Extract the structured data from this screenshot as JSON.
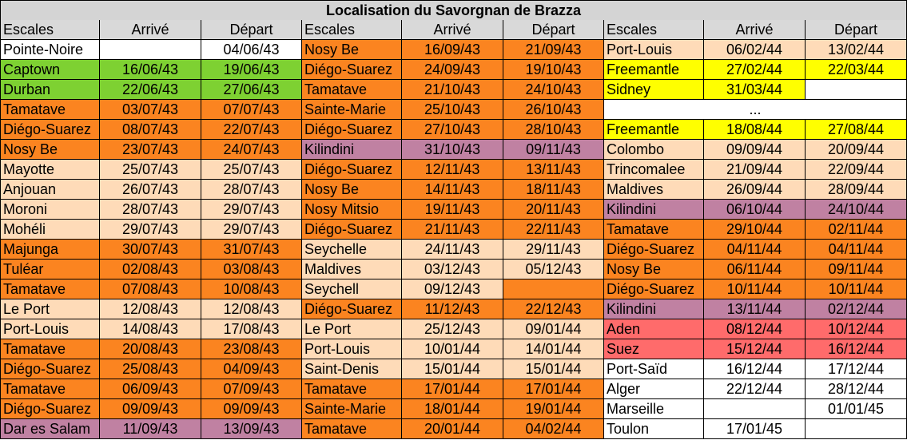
{
  "title": "Localisation du Savorgnan de Brazza",
  "groups": [
    {
      "headers": [
        "Escales",
        "Arrivé",
        "Départ"
      ],
      "rows": [
        {
          "cells": [
            "Pointe-Noire",
            null,
            "04/06/43"
          ],
          "color": "#ffffff"
        },
        {
          "cells": [
            "Captown",
            "16/06/43",
            "19/06/43"
          ],
          "color": "#7ed132"
        },
        {
          "cells": [
            "Durban",
            "22/06/43",
            "27/06/43"
          ],
          "color": "#7ed132"
        },
        {
          "cells": [
            "Tamatave",
            "03/07/43",
            "07/07/43"
          ],
          "color": "#fb8420"
        },
        {
          "cells": [
            "Diégo-Suarez",
            "08/07/43",
            "22/07/43"
          ],
          "color": "#fb8420"
        },
        {
          "cells": [
            "Nosy Be",
            "23/07/43",
            "24/07/43"
          ],
          "color": "#fb8420"
        },
        {
          "cells": [
            "Mayotte",
            "25/07/43",
            "25/07/43"
          ],
          "color": "#fedbb8"
        },
        {
          "cells": [
            "Anjouan",
            "26/07/43",
            "28/07/43"
          ],
          "color": "#fedbb8"
        },
        {
          "cells": [
            "Moroni",
            "28/07/43",
            "29/07/43"
          ],
          "color": "#fedbb8"
        },
        {
          "cells": [
            "Mohéli",
            "29/07/43",
            "29/07/43"
          ],
          "color": "#fedbb8"
        },
        {
          "cells": [
            "Majunga",
            "30/07/43",
            "31/07/43"
          ],
          "color": "#fb8420"
        },
        {
          "cells": [
            "Tuléar",
            "02/08/43",
            "03/08/43"
          ],
          "color": "#fb8420"
        },
        {
          "cells": [
            "Tamatave",
            "07/08/43",
            "10/08/43"
          ],
          "color": "#fb8420"
        },
        {
          "cells": [
            "Le Port",
            "12/08/43",
            "12/08/43"
          ],
          "color": "#fedbb8"
        },
        {
          "cells": [
            "Port-Louis",
            "14/08/43",
            "17/08/43"
          ],
          "color": "#fedbb8"
        },
        {
          "cells": [
            "Tamatave",
            "20/08/43",
            "23/08/43"
          ],
          "color": "#fb8420"
        },
        {
          "cells": [
            "Diégo-Suarez",
            "25/08/43",
            "04/09/43"
          ],
          "color": "#fb8420"
        },
        {
          "cells": [
            "Tamatave",
            "06/09/43",
            "07/09/43"
          ],
          "color": "#fb8420"
        },
        {
          "cells": [
            "Diégo-Suarez",
            "09/09/43",
            "09/09/43"
          ],
          "color": "#fb8420"
        },
        {
          "cells": [
            "Dar es Salam",
            "11/09/43",
            "13/09/43"
          ],
          "color": "#c081a2"
        }
      ]
    },
    {
      "headers": [
        "Escales",
        "Arrivé",
        "Départ"
      ],
      "rows": [
        {
          "cells": [
            "Nosy Be",
            "16/09/43",
            "21/09/43"
          ],
          "color": "#fb8420"
        },
        {
          "cells": [
            "Diégo-Suarez",
            "24/09/43",
            "19/10/43"
          ],
          "color": "#fb8420"
        },
        {
          "cells": [
            "Tamatave",
            "21/10/43",
            "24/10/43"
          ],
          "color": "#fb8420"
        },
        {
          "cells": [
            "Sainte-Marie",
            "25/10/43",
            "26/10/43"
          ],
          "color": "#fb8420"
        },
        {
          "cells": [
            "Diégo-Suarez",
            "27/10/43",
            "28/10/43"
          ],
          "color": "#fb8420"
        },
        {
          "cells": [
            "Kilindini",
            "31/10/43",
            "09/11/43"
          ],
          "color": "#c081a2"
        },
        {
          "cells": [
            "Diégo-Suarez",
            "12/11/43",
            "13/11/43"
          ],
          "color": "#fb8420"
        },
        {
          "cells": [
            "Nosy Be",
            "14/11/43",
            "18/11/43"
          ],
          "color": "#fb8420"
        },
        {
          "cells": [
            "Nosy Mitsio",
            "19/11/43",
            "20/11/43"
          ],
          "color": "#fb8420"
        },
        {
          "cells": [
            "Diégo-Suarez",
            "21/11/43",
            "22/11/43"
          ],
          "color": "#fb8420"
        },
        {
          "cells": [
            "Seychelle",
            "24/11/43",
            "29/11/43"
          ],
          "color": "#fedbb8"
        },
        {
          "cells": [
            "Maldives",
            "03/12/43",
            "05/12/43"
          ],
          "color": "#fedbb8"
        },
        {
          "cells": [
            "Seychell",
            "09/12/43",
            null
          ],
          "colors": [
            "#fedbb8",
            "#fedbb8",
            "#fb8420"
          ]
        },
        {
          "cells": [
            "Diégo-Suarez",
            "11/12/43",
            "22/12/43"
          ],
          "color": "#fb8420"
        },
        {
          "cells": [
            "Le Port",
            "25/12/43",
            "09/01/44"
          ],
          "color": "#fedbb8"
        },
        {
          "cells": [
            "Port-Louis",
            "10/01/44",
            "14/01/44"
          ],
          "color": "#fedbb8"
        },
        {
          "cells": [
            "Saint-Denis",
            "15/01/44",
            "15/01/44"
          ],
          "color": "#fedbb8"
        },
        {
          "cells": [
            "Tamatave",
            "17/01/44",
            "17/01/44"
          ],
          "color": "#fb8420"
        },
        {
          "cells": [
            "Sainte-Marie",
            "18/01/44",
            "19/01/44"
          ],
          "color": "#fb8420"
        },
        {
          "cells": [
            "Tamatave",
            "20/01/44",
            "04/02/44"
          ],
          "color": "#fb8420"
        }
      ]
    },
    {
      "headers": [
        "Escales",
        "Arrivé",
        "Départ"
      ],
      "rows": [
        {
          "cells": [
            "Port-Louis",
            "06/02/44",
            "13/02/44"
          ],
          "color": "#fedbb8"
        },
        {
          "cells": [
            "Freemantle",
            "27/02/44",
            "22/03/44"
          ],
          "color": "#ffff00"
        },
        {
          "cells": [
            "Sidney",
            "31/03/44",
            null
          ],
          "colors": [
            "#ffff00",
            "#ffff00",
            "#ffffff"
          ]
        },
        {
          "cells": [
            "..."
          ],
          "color": "#ffffff",
          "span": true
        },
        {
          "cells": [
            "Freemantle",
            "18/08/44",
            "27/08/44"
          ],
          "color": "#ffff00"
        },
        {
          "cells": [
            "Colombo",
            "09/09/44",
            "20/09/44"
          ],
          "color": "#fedbb8"
        },
        {
          "cells": [
            "Trincomalee",
            "21/09/44",
            "22/09/44"
          ],
          "color": "#fedbb8"
        },
        {
          "cells": [
            "Maldives",
            "26/09/44",
            "28/09/44"
          ],
          "color": "#fedbb8"
        },
        {
          "cells": [
            "Kilindini",
            "06/10/44",
            "24/10/44"
          ],
          "color": "#c081a2"
        },
        {
          "cells": [
            "Tamatave",
            "29/10/44",
            "02/11/44"
          ],
          "color": "#fb8420"
        },
        {
          "cells": [
            "Diégo-Suarez",
            "04/11/44",
            "04/11/44"
          ],
          "color": "#fb8420"
        },
        {
          "cells": [
            "Nosy Be",
            "06/11/44",
            "09/11/44"
          ],
          "color": "#fb8420"
        },
        {
          "cells": [
            "Diégo-Suarez",
            "10/11/44",
            "10/11/44"
          ],
          "color": "#fb8420"
        },
        {
          "cells": [
            "Kilindini",
            "13/11/44",
            "02/12/44"
          ],
          "color": "#c081a2"
        },
        {
          "cells": [
            "Aden",
            "08/12/44",
            "10/12/44"
          ],
          "color": "#ff6b6b"
        },
        {
          "cells": [
            "Suez",
            "15/12/44",
            "16/12/44"
          ],
          "color": "#ff6b6b"
        },
        {
          "cells": [
            "Port-Saïd",
            "16/12/44",
            "17/12/44"
          ],
          "color": "#ffffff"
        },
        {
          "cells": [
            "Alger",
            "22/12/44",
            "28/12/44"
          ],
          "color": "#ffffff"
        },
        {
          "cells": [
            "Marseille",
            null,
            "01/01/45"
          ],
          "color": "#ffffff"
        },
        {
          "cells": [
            "Toulon",
            "17/01/45",
            null
          ],
          "color": "#ffffff"
        }
      ]
    }
  ]
}
